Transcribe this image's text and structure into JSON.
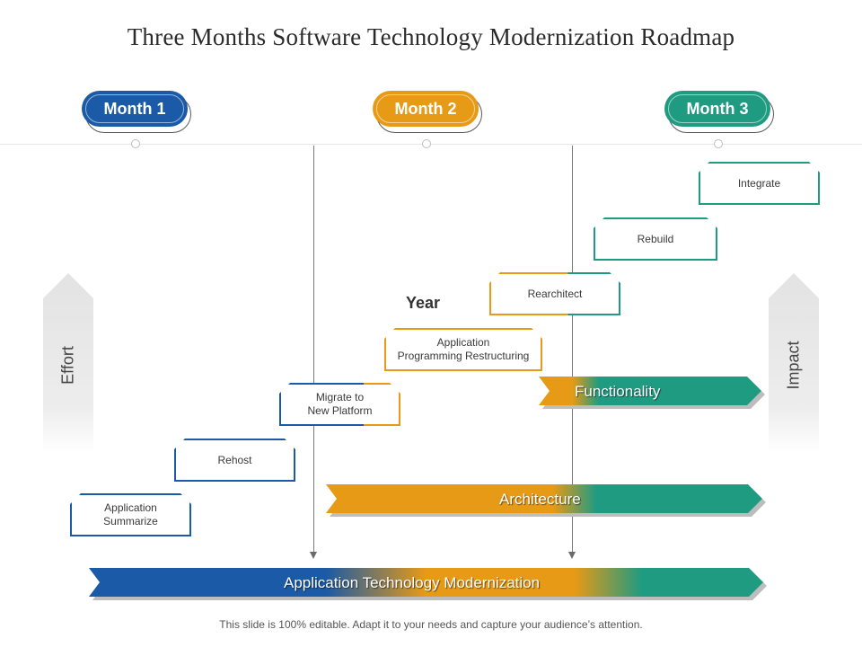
{
  "title": "Three Months Software Technology Modernization Roadmap",
  "months": [
    {
      "label": "Month 1",
      "color": "#1a5aa6"
    },
    {
      "label": "Month 2",
      "color": "#e79a16"
    },
    {
      "label": "Month 3",
      "color": "#1f9b82"
    }
  ],
  "year_label": "Year",
  "axis": {
    "left": "Effort",
    "right": "Impact"
  },
  "steps": [
    {
      "line1": "Application",
      "line2": "Summarize"
    },
    {
      "line1": "Rehost",
      "line2": ""
    },
    {
      "line1": "Migrate to",
      "line2": "New Platform"
    },
    {
      "line1": "Application",
      "line2": "Programming Restructuring"
    },
    {
      "line1": "Rearchitect",
      "line2": ""
    },
    {
      "line1": "Rebuild",
      "line2": ""
    },
    {
      "line1": "Integrate",
      "line2": ""
    }
  ],
  "bands": {
    "functionality": "Functionality",
    "architecture": "Architecture",
    "modernization": "Application Technology Modernization"
  },
  "colors": {
    "blue": "#1a5aa6",
    "orange": "#e79a16",
    "teal": "#1f9b82",
    "gray": "#e8e8e8"
  },
  "footer": "This slide is 100% editable. Adapt it to your needs and capture your audience’s attention."
}
